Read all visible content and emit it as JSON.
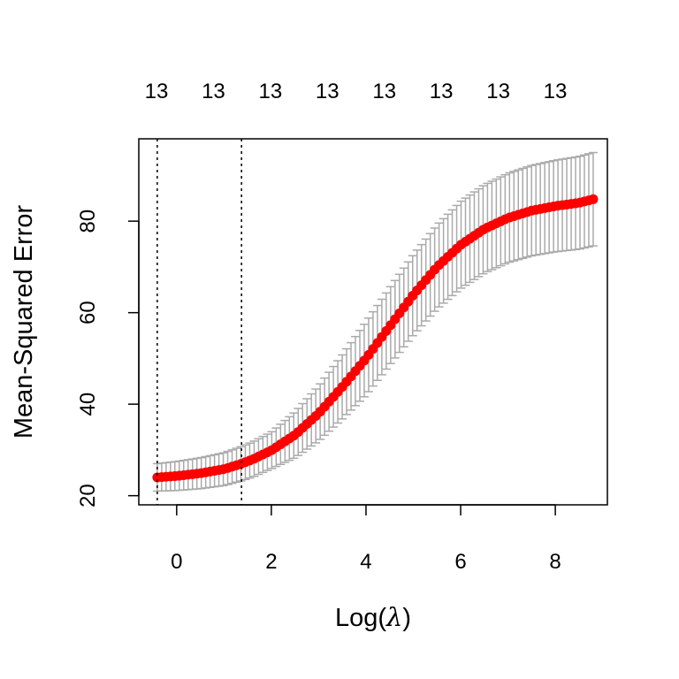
{
  "chart_data": {
    "type": "scatter",
    "title": "",
    "xlabel": "Log(λ)",
    "xlabel_parts": {
      "prefix": "Log(",
      "symbol": "λ",
      "suffix": ")"
    },
    "ylabel": "Mean-Squared Error",
    "xlim": [
      -0.8,
      9.1
    ],
    "ylim": [
      18,
      98
    ],
    "x_ticks": [
      0,
      2,
      4,
      6,
      8
    ],
    "x_tick_labels": [
      "0",
      "2",
      "4",
      "6",
      "8"
    ],
    "y_ticks": [
      20,
      40,
      60,
      80
    ],
    "y_tick_labels": [
      "20",
      "40",
      "60",
      "80"
    ],
    "top_axis_labels": [
      "13",
      "13",
      "13",
      "13",
      "13",
      "13",
      "13",
      "13"
    ],
    "reference_lines_x": [
      -0.41,
      1.37
    ],
    "grid": false,
    "legend": "none",
    "series": [
      {
        "x_start": -0.41,
        "x_end": 8.8,
        "n_points": 100,
        "y_at_x": [
          [
            -0.41,
            24.0
          ],
          [
            0.0,
            24.3
          ],
          [
            0.5,
            24.9
          ],
          [
            1.0,
            25.8
          ],
          [
            1.37,
            27.0
          ],
          [
            1.6,
            27.9
          ],
          [
            2.0,
            29.9
          ],
          [
            2.5,
            33.3
          ],
          [
            3.0,
            38.0
          ],
          [
            3.5,
            43.8
          ],
          [
            4.0,
            50.0
          ],
          [
            4.5,
            57.0
          ],
          [
            5.0,
            63.9
          ],
          [
            5.5,
            70.0
          ],
          [
            6.0,
            74.8
          ],
          [
            6.5,
            78.3
          ],
          [
            7.0,
            80.7
          ],
          [
            7.5,
            82.3
          ],
          [
            8.0,
            83.3
          ],
          [
            8.5,
            84.0
          ],
          [
            8.8,
            84.8
          ]
        ],
        "error_half_width_at_x": [
          [
            -0.41,
            3.0
          ],
          [
            2.0,
            4.0
          ],
          [
            4.0,
            8.0
          ],
          [
            6.0,
            9.5
          ],
          [
            8.8,
            10.2
          ]
        ],
        "point_color": "#ff0000",
        "error_bar_color": "#aaaaaa"
      }
    ]
  }
}
